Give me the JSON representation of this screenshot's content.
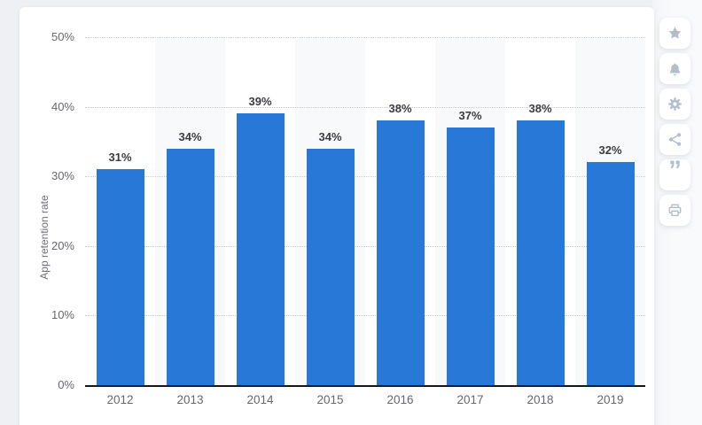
{
  "page": {
    "background_color": "#eef0f3",
    "card_background_color": "#ffffff"
  },
  "chart_data": {
    "type": "bar",
    "title": "",
    "categories": [
      "2012",
      "2013",
      "2014",
      "2015",
      "2016",
      "2017",
      "2018",
      "2019"
    ],
    "values": [
      31,
      34,
      39,
      34,
      38,
      37,
      38,
      32
    ],
    "data_labels": [
      "31%",
      "34%",
      "39%",
      "34%",
      "38%",
      "37%",
      "38%",
      "32%"
    ],
    "xlabel": "",
    "ylabel": "App retention rate",
    "ylim": [
      0,
      50
    ],
    "yticks": {
      "values": [
        0,
        10,
        20,
        30,
        40,
        50
      ],
      "labels": [
        "0%",
        "10%",
        "20%",
        "30%",
        "40%",
        "50%"
      ]
    },
    "grid": "horizontal-dotted",
    "legend": "none",
    "bar_color": "#2878d8",
    "band_color": "#f8f9fa",
    "axis_line_color": "#15171b"
  },
  "toolbar": {
    "icon_color": "#b4bdcb",
    "buttons": [
      {
        "name": "favorite",
        "icon": "star-icon"
      },
      {
        "name": "notifications",
        "icon": "bell-icon"
      },
      {
        "name": "settings",
        "icon": "gear-icon"
      },
      {
        "name": "share",
        "icon": "share-icon"
      },
      {
        "name": "cite",
        "icon": "quote-icon"
      },
      {
        "name": "print",
        "icon": "printer-icon"
      }
    ]
  }
}
